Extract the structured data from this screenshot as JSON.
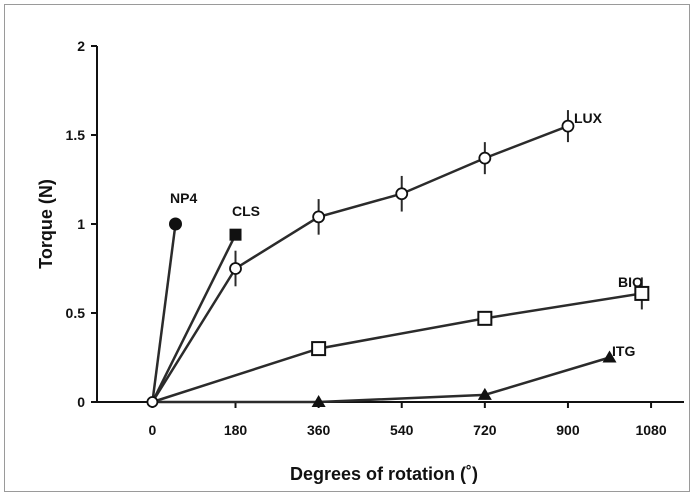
{
  "chart_data": {
    "type": "line",
    "title": "",
    "xlabel": "Degrees of rotation (˚)",
    "ylabel": "Torque (N)",
    "xlim": [
      -120,
      1160
    ],
    "ylim": [
      0,
      2
    ],
    "x_ticks": [
      0,
      180,
      360,
      540,
      720,
      900,
      1080
    ],
    "y_ticks": [
      0,
      0.5,
      1,
      1.5,
      2
    ],
    "y_tick_labels": [
      "0",
      "0.5",
      "1",
      "1.5",
      "2"
    ],
    "grid": false,
    "legend": "none",
    "series": [
      {
        "name": "LUX",
        "marker": "circle-open",
        "x": [
          0,
          180,
          360,
          540,
          720,
          900
        ],
        "y": [
          0,
          0.75,
          1.04,
          1.17,
          1.37,
          1.55
        ],
        "err": [
          0,
          0.1,
          0.1,
          0.1,
          0.09,
          0.09
        ]
      },
      {
        "name": "NP4",
        "marker": "circle-filled",
        "x": [
          0,
          50
        ],
        "y": [
          0,
          1.0
        ],
        "err": [
          0,
          0.03
        ]
      },
      {
        "name": "CLS",
        "marker": "square-filled",
        "x": [
          0,
          180
        ],
        "y": [
          0,
          0.94
        ],
        "err": [
          0,
          0.03
        ]
      },
      {
        "name": "BIO",
        "marker": "square-open",
        "x": [
          0,
          360,
          720,
          1060
        ],
        "y": [
          0,
          0.3,
          0.47,
          0.61
        ],
        "err": [
          0,
          0.02,
          0.03,
          0.09
        ]
      },
      {
        "name": "ITG",
        "marker": "triangle-filled",
        "x": [
          0,
          360,
          720,
          990
        ],
        "y": [
          0,
          0.0,
          0.04,
          0.25
        ],
        "err": [
          0,
          0.01,
          0.01,
          0.02
        ]
      }
    ],
    "colors": {
      "line": "#2b2b2b",
      "marker": "#111111"
    }
  }
}
